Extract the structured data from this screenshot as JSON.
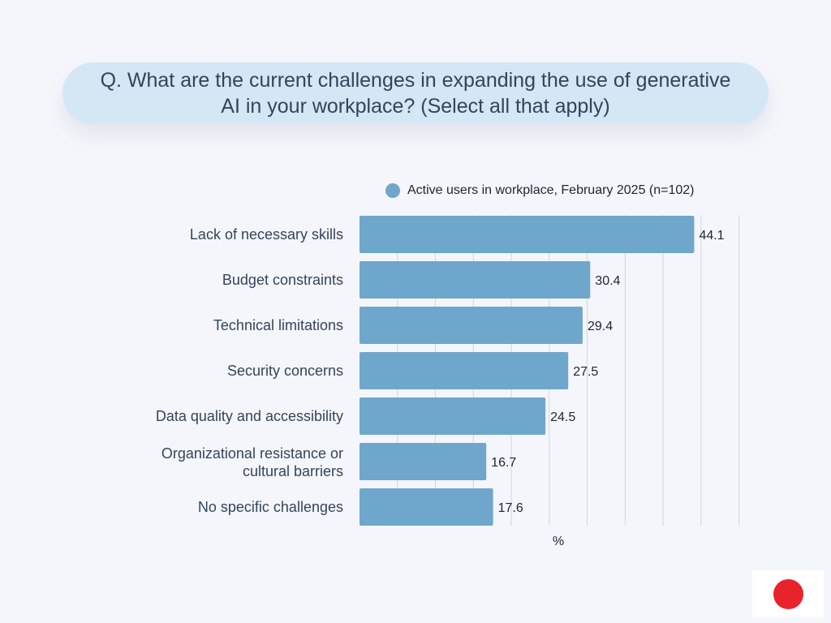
{
  "question": "Q. What are the current challenges in expanding the use of generative AI in your workplace? (Select all that apply)",
  "colors": {
    "bar": "#6fa6cb",
    "grid": "#d2d6de",
    "flag_red": "#e8232b"
  },
  "chart_data": {
    "type": "bar",
    "orientation": "horizontal",
    "categories": [
      "Lack of necessary skills",
      "Budget constraints",
      "Technical limitations",
      "Security concerns",
      "Data quality and accessibility",
      "Organizational resistance or cultural barriers",
      "No specific challenges"
    ],
    "series": [
      {
        "name": "Active users in workplace, February 2025 (n=102)",
        "values": [
          44.1,
          30.4,
          29.4,
          27.5,
          24.5,
          16.7,
          17.6
        ]
      }
    ],
    "value_labels": [
      "44.1",
      "30.4",
      "29.4",
      "27.5",
      "24.5",
      "16.7",
      "17.6"
    ],
    "xlabel": "%",
    "xlim": [
      0,
      52.5
    ],
    "grid": true,
    "legend_position": "top"
  }
}
